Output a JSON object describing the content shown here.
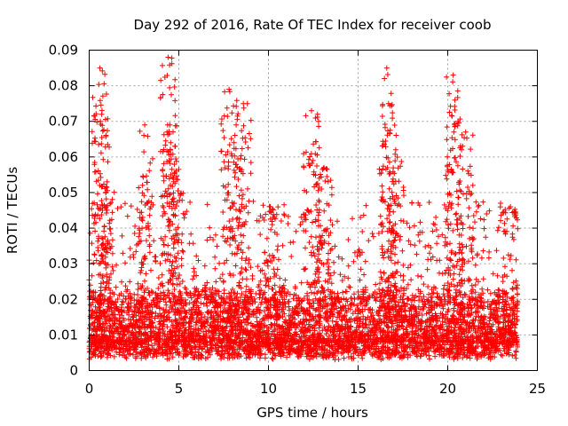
{
  "chart_data": {
    "type": "scatter",
    "title": "Day 292 of 2016, Rate Of TEC Index for receiver coob",
    "xlabel": "GPS time / hours",
    "ylabel": "ROTI / TECUs",
    "xlim": [
      0,
      25
    ],
    "ylim": [
      0,
      0.09
    ],
    "xticks": [
      0,
      5,
      10,
      15,
      20,
      25
    ],
    "yticks": [
      0,
      0.01,
      0.02,
      0.03,
      0.04,
      0.05,
      0.06,
      0.07,
      0.08,
      0.09
    ],
    "xtick_labels": [
      "0",
      "5",
      "10",
      "15",
      "20",
      "25"
    ],
    "ytick_labels": [
      "0",
      "0.01",
      "0.02",
      "0.03",
      "0.04",
      "0.05",
      "0.06",
      "0.07",
      "0.08",
      "0.09"
    ],
    "grid": true,
    "marker": "plus",
    "color": "#ff0000",
    "x_range_data": [
      0,
      23.9
    ],
    "baseline_band": [
      0.003,
      0.02
    ],
    "peaks": [
      {
        "x": 0.6,
        "y": 0.085
      },
      {
        "x": 0.7,
        "y": 0.072
      },
      {
        "x": 1.0,
        "y": 0.053
      },
      {
        "x": 3.1,
        "y": 0.069
      },
      {
        "x": 4.4,
        "y": 0.088
      },
      {
        "x": 4.5,
        "y": 0.069
      },
      {
        "x": 4.8,
        "y": 0.063
      },
      {
        "x": 7.8,
        "y": 0.079
      },
      {
        "x": 8.2,
        "y": 0.069
      },
      {
        "x": 8.6,
        "y": 0.075
      },
      {
        "x": 10.1,
        "y": 0.046
      },
      {
        "x": 12.4,
        "y": 0.073
      },
      {
        "x": 13.1,
        "y": 0.057
      },
      {
        "x": 16.6,
        "y": 0.085
      },
      {
        "x": 16.7,
        "y": 0.075
      },
      {
        "x": 17.1,
        "y": 0.062
      },
      {
        "x": 20.3,
        "y": 0.083
      },
      {
        "x": 20.4,
        "y": 0.076
      },
      {
        "x": 21.0,
        "y": 0.067
      },
      {
        "x": 23.5,
        "y": 0.046
      }
    ]
  }
}
